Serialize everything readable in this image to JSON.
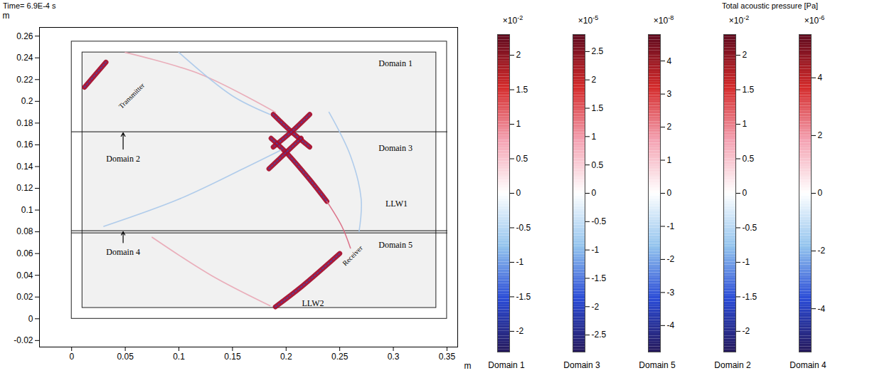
{
  "chart_data": {
    "type": "field",
    "title": "Time= 6.9E-4 s",
    "subtitle": "Total acoustic pressure [Pa]",
    "xlabel": "m",
    "ylabel": "m",
    "xlim": [
      -0.03,
      0.36
    ],
    "ylim": [
      -0.026,
      0.268
    ],
    "xticks": [
      0,
      0.05,
      0.1,
      0.15,
      0.2,
      0.25,
      0.3,
      0.35
    ],
    "yticks": [
      -0.02,
      0,
      0.02,
      0.04,
      0.06,
      0.08,
      0.1,
      0.12,
      0.14,
      0.16,
      0.18,
      0.2,
      0.22,
      0.24,
      0.26
    ],
    "regions": [
      {
        "x1": 0.01,
        "x2": 0.34,
        "y1": 0.01,
        "y2": 0.245,
        "color": "#f1f1f1"
      },
      {
        "x1": 0,
        "x2": 0.35,
        "y1": 0,
        "y2": 0.255,
        "color": "none"
      }
    ],
    "boundaries": [
      [
        [
          0,
          0.172
        ],
        [
          0.35,
          0.172
        ]
      ],
      [
        [
          0,
          0.081
        ],
        [
          0.35,
          0.081
        ]
      ],
      [
        [
          0,
          0.079
        ],
        [
          0.35,
          0.079
        ]
      ]
    ],
    "wavefronts": [
      {
        "color": "#a50f2d",
        "line_style": "bold",
        "points": [
          [
            0.012,
            0.213
          ],
          [
            0.032,
            0.236
          ]
        ]
      },
      {
        "color": "#a50f2d",
        "line_style": "bold",
        "points": [
          [
            0.188,
            0.188
          ],
          [
            0.205,
            0.172
          ],
          [
            0.222,
            0.158
          ]
        ]
      },
      {
        "color": "#a50f2d",
        "line_style": "bold",
        "points": [
          [
            0.222,
            0.188
          ],
          [
            0.205,
            0.172
          ],
          [
            0.188,
            0.158
          ]
        ]
      },
      {
        "color": "#a50f2d",
        "line_style": "bold",
        "points": [
          [
            0.186,
            0.166
          ],
          [
            0.2,
            0.153
          ],
          [
            0.222,
            0.128
          ],
          [
            0.238,
            0.108
          ]
        ]
      },
      {
        "color": "#a50f2d",
        "line_style": "bold",
        "points": [
          [
            0.214,
            0.166
          ],
          [
            0.2,
            0.153
          ],
          [
            0.184,
            0.138
          ]
        ]
      },
      {
        "color": "#a50f2d",
        "line_style": "bold",
        "points": [
          [
            0.19,
            0.011
          ],
          [
            0.215,
            0.03
          ],
          [
            0.25,
            0.06
          ]
        ]
      },
      {
        "color": "#e9a6b4",
        "line_style": "thin",
        "points": [
          [
            0.05,
            0.245
          ],
          [
            0.12,
            0.225
          ],
          [
            0.19,
            0.19
          ]
        ]
      },
      {
        "color": "#a9c8ea",
        "line_style": "thin",
        "points": [
          [
            0.03,
            0.085
          ],
          [
            0.1,
            0.11
          ],
          [
            0.16,
            0.138
          ],
          [
            0.195,
            0.155
          ]
        ]
      },
      {
        "color": "#d9677f",
        "line_style": "thin",
        "points": [
          [
            0.238,
            0.108
          ],
          [
            0.252,
            0.085
          ],
          [
            0.26,
            0.065
          ]
        ]
      },
      {
        "color": "#e9a6b4",
        "line_style": "thin",
        "points": [
          [
            0.075,
            0.075
          ],
          [
            0.13,
            0.04
          ],
          [
            0.185,
            0.012
          ]
        ]
      },
      {
        "color": "#a9c8ea",
        "line_style": "thin",
        "points": [
          [
            0.24,
            0.19
          ],
          [
            0.26,
            0.15
          ],
          [
            0.27,
            0.11
          ],
          [
            0.268,
            0.08
          ]
        ]
      },
      {
        "color": "#a9c8ea",
        "line_style": "thin",
        "points": [
          [
            0.1,
            0.245
          ],
          [
            0.15,
            0.205
          ],
          [
            0.185,
            0.188
          ]
        ]
      }
    ],
    "labels": [
      {
        "text": "Domain 1",
        "x": 0.302,
        "y": 0.235,
        "boxed": true
      },
      {
        "text": "Domain 3",
        "x": 0.302,
        "y": 0.157,
        "boxed": true
      },
      {
        "text": "Domain 5",
        "x": 0.302,
        "y": 0.068,
        "boxed": true
      },
      {
        "text": "Domain 2",
        "x": 0.048,
        "y": 0.147,
        "boxed": true,
        "arrow": [
          [
            0.048,
            0.156
          ],
          [
            0.048,
            0.171
          ]
        ]
      },
      {
        "text": "Domain 4",
        "x": 0.048,
        "y": 0.061,
        "boxed": true,
        "arrow": [
          [
            0.048,
            0.07
          ],
          [
            0.048,
            0.08
          ]
        ]
      },
      {
        "text": "LLW1",
        "x": 0.303,
        "y": 0.106,
        "boxed": false
      },
      {
        "text": "LLW2",
        "x": 0.225,
        "y": 0.014,
        "boxed": false
      }
    ],
    "probes": [
      {
        "text": "Transmitter",
        "x": 0.056,
        "y": 0.205
      },
      {
        "text": "Receiver",
        "x": 0.262,
        "y": 0.058
      }
    ],
    "colorbars": [
      {
        "name": "Domain 1",
        "multiplier": "×10",
        "exponent": "-2",
        "lim": [
          -2.3,
          2.3
        ],
        "ticks": [
          -2,
          -1.5,
          -1,
          -0.5,
          0,
          0.5,
          1,
          1.5,
          2
        ]
      },
      {
        "name": "Domain 3",
        "multiplier": "×10",
        "exponent": "-5",
        "lim": [
          -2.8,
          2.8
        ],
        "ticks": [
          -2.5,
          -2,
          -1.5,
          -1,
          -0.5,
          0,
          0.5,
          1,
          1.5,
          2,
          2.5
        ]
      },
      {
        "name": "Domain 5",
        "multiplier": "×10",
        "exponent": "-8",
        "lim": [
          -4.8,
          4.8
        ],
        "ticks": [
          -4,
          -3,
          -2,
          -1,
          0,
          1,
          2,
          3,
          4
        ]
      },
      {
        "name": "Domain 2",
        "multiplier": "×10",
        "exponent": "-2",
        "lim": [
          -2.3,
          2.3
        ],
        "ticks": [
          -2,
          -1.5,
          -1,
          -0.5,
          0,
          0.5,
          1,
          1.5,
          2
        ]
      },
      {
        "name": "Domain 4",
        "multiplier": "×10",
        "exponent": "-6",
        "lim": [
          -5.5,
          5.5
        ],
        "ticks": [
          -4,
          -2,
          0,
          2,
          4
        ]
      }
    ]
  }
}
